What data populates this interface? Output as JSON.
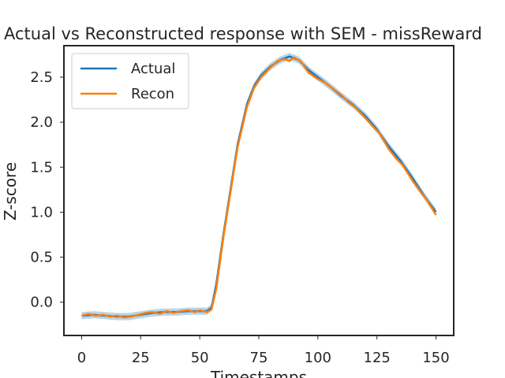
{
  "chart_data": {
    "type": "line",
    "title": "Actual vs Reconstructed response with SEM - missReward",
    "xlabel": "Timestamps",
    "ylabel": "Z-score",
    "xlim": [
      -7.5,
      157.5
    ],
    "ylim": [
      -0.37,
      2.85
    ],
    "xticks": [
      0,
      25,
      50,
      75,
      100,
      125,
      150
    ],
    "yticks": [
      0.0,
      0.5,
      1.0,
      1.5,
      2.0,
      2.5
    ],
    "grid": false,
    "legend_position": "top-left",
    "band_color": "#a6cbe6",
    "series": [
      {
        "name": "Actual",
        "color": "#1f77b4",
        "sem": 0.04,
        "x": [
          0,
          5,
          10,
          15,
          20,
          25,
          30,
          35,
          40,
          45,
          50,
          53,
          55,
          57,
          60,
          63,
          66,
          70,
          73,
          76,
          80,
          84,
          88,
          92,
          96,
          100,
          105,
          110,
          115,
          120,
          125,
          130,
          135,
          140,
          145,
          150
        ],
        "y": [
          -0.15,
          -0.14,
          -0.15,
          -0.16,
          -0.16,
          -0.14,
          -0.12,
          -0.11,
          -0.11,
          -0.1,
          -0.1,
          -0.1,
          -0.06,
          0.2,
          0.75,
          1.25,
          1.75,
          2.2,
          2.4,
          2.52,
          2.62,
          2.69,
          2.73,
          2.69,
          2.58,
          2.5,
          2.4,
          2.29,
          2.19,
          2.07,
          1.92,
          1.73,
          1.57,
          1.38,
          1.18,
          1.0
        ]
      },
      {
        "name": "Recon",
        "color": "#ff7f0e",
        "x": [
          0,
          3,
          6,
          9,
          12,
          15,
          18,
          21,
          24,
          27,
          30,
          33,
          36,
          39,
          42,
          45,
          48,
          50,
          53,
          55,
          57,
          60,
          63,
          66,
          70,
          73,
          76,
          80,
          83,
          86,
          88,
          90,
          93,
          96,
          100,
          103,
          106,
          110,
          113,
          116,
          120,
          123,
          126,
          130,
          133,
          136,
          140,
          143,
          146,
          150
        ],
        "y": [
          -0.15,
          -0.13,
          -0.15,
          -0.14,
          -0.16,
          -0.15,
          -0.17,
          -0.16,
          -0.14,
          -0.12,
          -0.11,
          -0.13,
          -0.1,
          -0.12,
          -0.1,
          -0.09,
          -0.11,
          -0.09,
          -0.11,
          -0.08,
          0.15,
          0.72,
          1.22,
          1.72,
          2.17,
          2.38,
          2.5,
          2.61,
          2.68,
          2.7,
          2.68,
          2.72,
          2.67,
          2.55,
          2.48,
          2.44,
          2.38,
          2.3,
          2.22,
          2.16,
          2.05,
          1.96,
          1.88,
          1.7,
          1.6,
          1.52,
          1.35,
          1.24,
          1.14,
          0.97
        ]
      }
    ]
  }
}
